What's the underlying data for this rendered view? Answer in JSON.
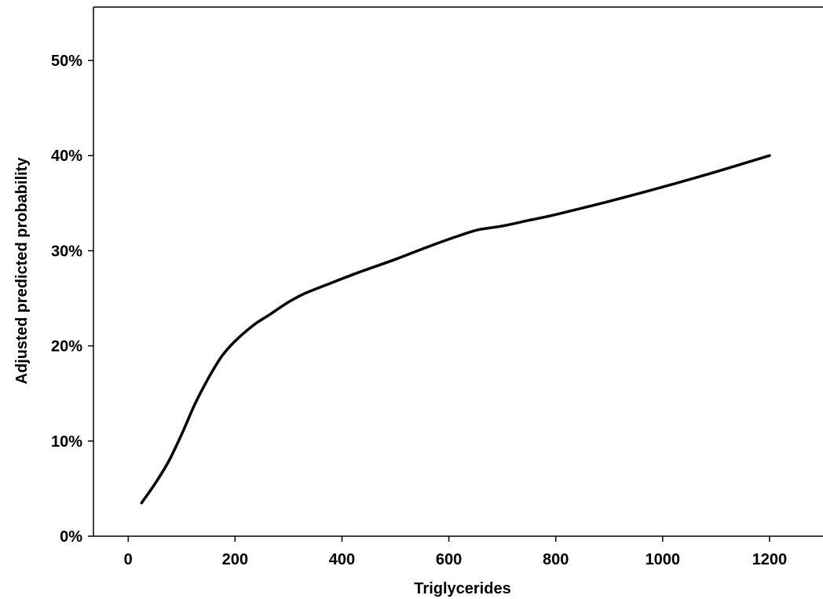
{
  "chart_data": {
    "type": "line",
    "title": "",
    "xlabel": "Triglycerides",
    "ylabel": "Adjusted predicted probability",
    "xlim": [
      -65,
      1300
    ],
    "ylim": [
      0,
      0.5
    ],
    "x_ticks": [
      0,
      200,
      400,
      600,
      800,
      1000,
      1200
    ],
    "x_tick_labels": [
      "0",
      "200",
      "400",
      "600",
      "800",
      "1000",
      "1200"
    ],
    "y_ticks": [
      0,
      0.1,
      0.2,
      0.3,
      0.4,
      0.5
    ],
    "y_tick_labels": [
      "0%",
      "10%",
      "20%",
      "30%",
      "40%",
      "50%"
    ],
    "grid": false,
    "legend": "none",
    "series": [
      {
        "x": [
          25,
          50,
          75,
          100,
          125,
          150,
          175,
          200,
          235,
          265,
          300,
          330,
          370,
          430,
          500,
          560,
          620,
          655,
          700,
          750,
          800,
          900,
          1000,
          1100,
          1200
        ],
        "y": [
          0.035,
          0.055,
          0.078,
          0.107,
          0.139,
          0.166,
          0.189,
          0.205,
          0.222,
          0.233,
          0.246,
          0.255,
          0.264,
          0.277,
          0.291,
          0.304,
          0.316,
          0.322,
          0.326,
          0.332,
          0.338,
          0.352,
          0.367,
          0.383,
          0.4
        ],
        "color": "#000000"
      }
    ]
  }
}
